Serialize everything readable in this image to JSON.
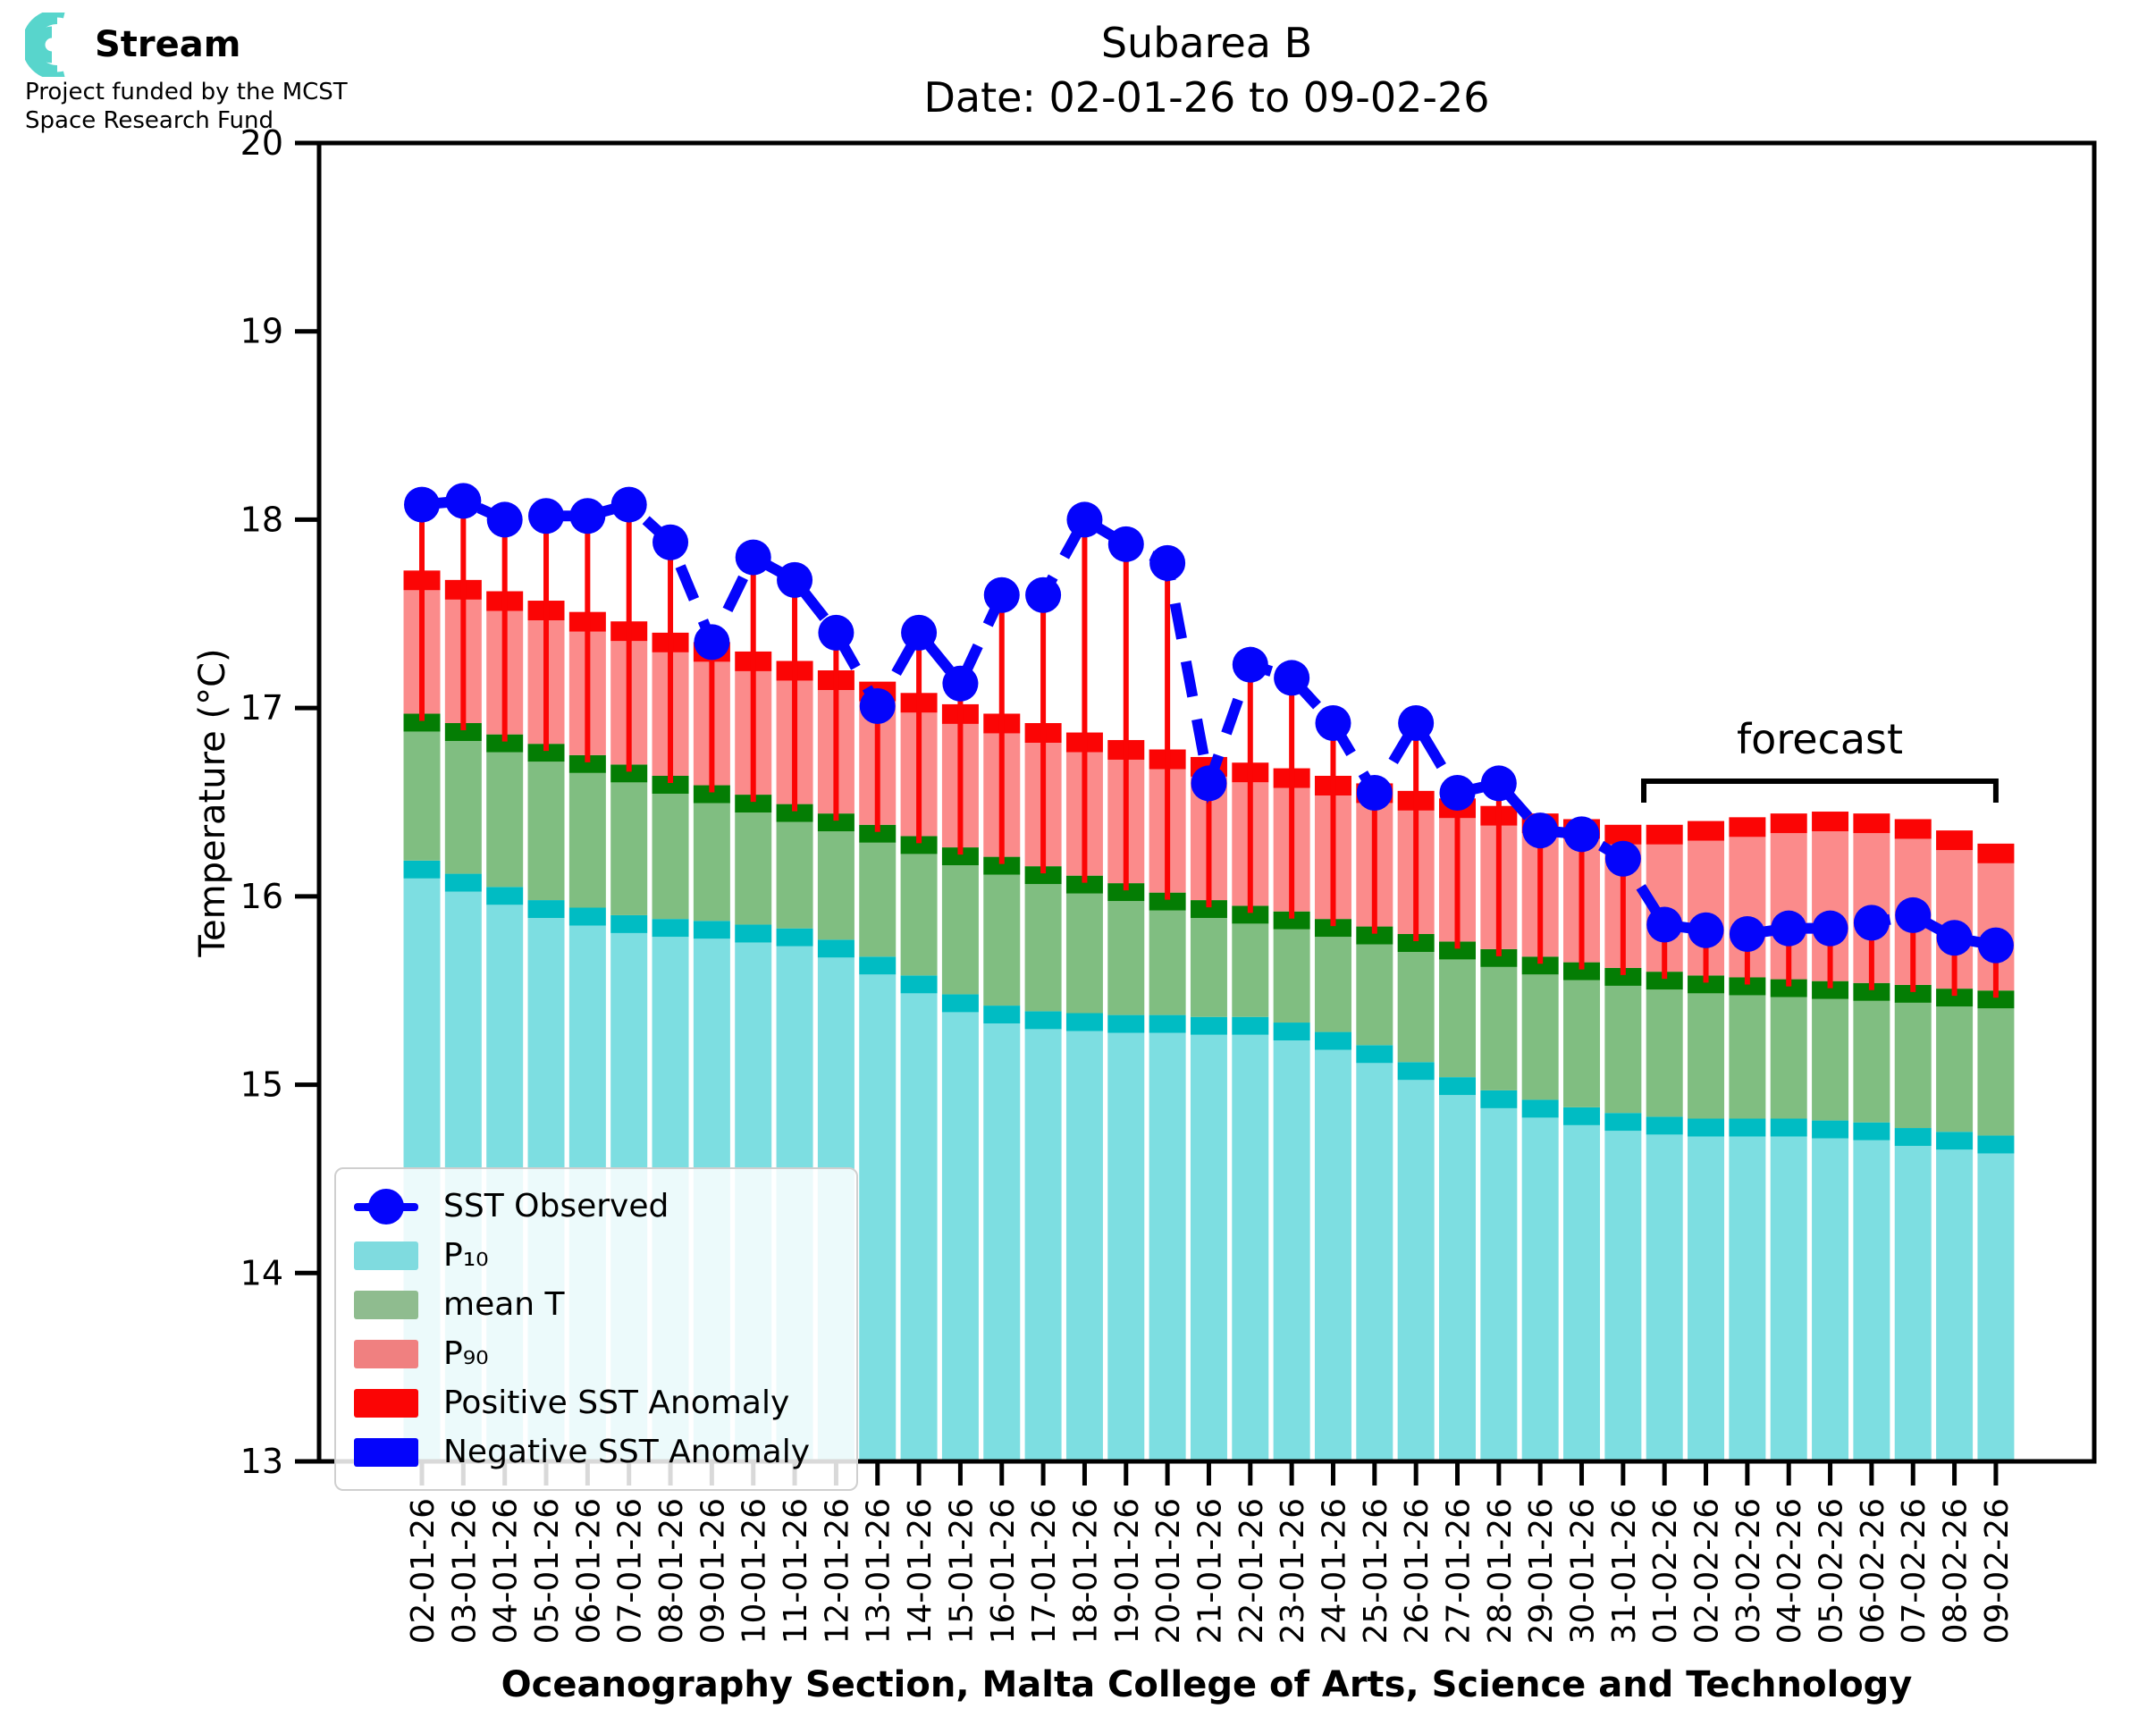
{
  "logo": {
    "brand": "Stream",
    "subtitle_line1": "Project funded by the MCST",
    "subtitle_line2": "Space Research Fund",
    "icon_color": "#58d5cc"
  },
  "title": {
    "line1": "Subarea B",
    "line2": "Date: 02-01-26 to 09-02-26"
  },
  "axes": {
    "y_label": "Temperature (°C)",
    "x_label": "Oceanography Section, Malta College of Arts, Science and Technology",
    "y_ticks": [
      20,
      19,
      18,
      17,
      16,
      15,
      14,
      13
    ],
    "y_min": 13,
    "y_max": 20
  },
  "annotations": {
    "forecast_label": "forecast",
    "forecast_start_date": "01-02-26",
    "forecast_end_date": "09-02-26"
  },
  "legend": {
    "items": [
      {
        "label": "SST Observed",
        "type": "line-dot",
        "color": "#0404fb"
      },
      {
        "label": "P₁₀",
        "type": "patch",
        "color": "#7fdbdf"
      },
      {
        "label": "mean T",
        "type": "patch",
        "color": "#8fbc8f"
      },
      {
        "label": "P₉₀",
        "type": "patch",
        "color": "#f08080"
      },
      {
        "label": "Positive SST Anomaly",
        "type": "patch",
        "color": "#fb0505"
      },
      {
        "label": "Negative SST Anomaly",
        "type": "patch",
        "color": "#0404fb"
      }
    ]
  },
  "colors": {
    "p10_fill": "#7ddee1",
    "p10_cap": "#00bcc3",
    "mean_fill": "#80be81",
    "mean_cap": "#047d04",
    "p90_fill": "#fb8b8b",
    "p90_cap": "#fb0505",
    "positive_anomaly": "#fb0505",
    "negative_anomaly": "#0404fb",
    "observed_dot": "#0404fb",
    "axis": "#000000"
  },
  "chart_data": {
    "type": "bar",
    "title": "Subarea B — Date: 02-01-26 to 09-02-26",
    "xlabel": "Oceanography Section, Malta College of Arts, Science and Technology",
    "ylabel": "Temperature (°C)",
    "ylim": [
      13,
      20
    ],
    "grid": false,
    "legend_position": "lower-left",
    "forecast_span_categories": [
      "01-02-26",
      "09-02-26"
    ],
    "categories": [
      "02-01-26",
      "03-01-26",
      "04-01-26",
      "05-01-26",
      "06-01-26",
      "07-01-26",
      "08-01-26",
      "09-01-26",
      "10-01-26",
      "11-01-26",
      "12-01-26",
      "13-01-26",
      "14-01-26",
      "15-01-26",
      "16-01-26",
      "17-01-26",
      "18-01-26",
      "19-01-26",
      "20-01-26",
      "21-01-26",
      "22-01-26",
      "23-01-26",
      "24-01-26",
      "25-01-26",
      "26-01-26",
      "27-01-26",
      "28-01-26",
      "29-01-26",
      "30-01-26",
      "31-01-26",
      "01-02-26",
      "02-02-26",
      "03-02-26",
      "04-02-26",
      "05-02-26",
      "06-02-26",
      "07-02-26",
      "08-02-26",
      "09-02-26"
    ],
    "series": [
      {
        "name": "P10",
        "values": [
          16.19,
          16.12,
          16.05,
          15.98,
          15.94,
          15.9,
          15.88,
          15.87,
          15.85,
          15.83,
          15.77,
          15.68,
          15.58,
          15.48,
          15.42,
          15.39,
          15.38,
          15.37,
          15.37,
          15.36,
          15.36,
          15.33,
          15.28,
          15.21,
          15.12,
          15.04,
          14.97,
          14.92,
          14.88,
          14.85,
          14.83,
          14.82,
          14.82,
          14.82,
          14.81,
          14.8,
          14.77,
          14.75,
          14.73
        ]
      },
      {
        "name": "mean T",
        "values": [
          16.97,
          16.92,
          16.86,
          16.81,
          16.75,
          16.7,
          16.64,
          16.59,
          16.54,
          16.49,
          16.44,
          16.38,
          16.32,
          16.26,
          16.21,
          16.16,
          16.11,
          16.07,
          16.02,
          15.98,
          15.95,
          15.92,
          15.88,
          15.84,
          15.8,
          15.76,
          15.72,
          15.68,
          15.65,
          15.62,
          15.6,
          15.58,
          15.57,
          15.56,
          15.55,
          15.54,
          15.53,
          15.51,
          15.5
        ]
      },
      {
        "name": "P90",
        "values": [
          17.73,
          17.68,
          17.62,
          17.57,
          17.51,
          17.46,
          17.4,
          17.35,
          17.3,
          17.25,
          17.2,
          17.14,
          17.08,
          17.02,
          16.97,
          16.92,
          16.87,
          16.83,
          16.78,
          16.74,
          16.71,
          16.68,
          16.64,
          16.6,
          16.56,
          16.52,
          16.48,
          16.44,
          16.41,
          16.38,
          16.38,
          16.4,
          16.42,
          16.44,
          16.45,
          16.44,
          16.41,
          16.35,
          16.28
        ]
      },
      {
        "name": "SST Observed",
        "values": [
          18.08,
          18.1,
          18.0,
          18.02,
          18.02,
          18.08,
          17.88,
          17.35,
          17.8,
          17.68,
          17.4,
          17.01,
          17.4,
          17.13,
          17.6,
          17.6,
          18.0,
          17.87,
          17.77,
          16.6,
          17.23,
          17.16,
          16.92,
          16.55,
          16.92,
          16.55,
          16.6,
          16.35,
          16.33,
          16.2,
          15.85,
          15.82,
          15.8,
          15.83,
          15.83,
          15.86,
          15.9,
          15.78,
          15.74
        ]
      }
    ]
  }
}
